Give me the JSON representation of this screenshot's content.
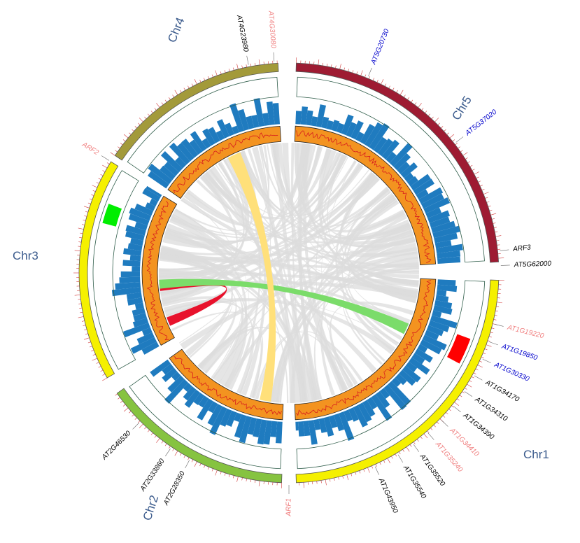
{
  "colors": {
    "ideogram_chr1": "#f5f000",
    "ideogram_chr2": "#86c340",
    "ideogram_chr3": "#f5f000",
    "ideogram_chr4": "#a39a3a",
    "ideogram_chr5": "#9e1b32",
    "tick": "#d23c3c",
    "histogram": "#1f7bbf",
    "heat_ring": "#f39320",
    "heat_line": "#d81e1e",
    "link_grey": "#dcdcdc",
    "link_red": "#e8122c",
    "link_green": "#7bdc6a",
    "link_yellow": "#ffe07a",
    "marker_red": "#ff0000",
    "marker_green": "#00ee00",
    "gene_black": "#000000",
    "gene_blue": "#0000cc",
    "gene_pink": "#f08080"
  },
  "chromosomes": [
    {
      "id": "chr1",
      "label": "Chr1"
    },
    {
      "id": "chr2",
      "label": "Chr2"
    },
    {
      "id": "chr3",
      "label": "Chr3"
    },
    {
      "id": "chr4",
      "label": "Chr4"
    },
    {
      "id": "chr5",
      "label": "Chr5"
    }
  ],
  "genes": [
    {
      "label": "AT1G19220",
      "color": "pink"
    },
    {
      "label": "AT1G19850",
      "color": "blue"
    },
    {
      "label": "AT1G30330",
      "color": "blue"
    },
    {
      "label": "AT1G34170",
      "color": "black"
    },
    {
      "label": "AT1G34310",
      "color": "black"
    },
    {
      "label": "AT1G34390",
      "color": "black"
    },
    {
      "label": "AT1G34410",
      "color": "pink"
    },
    {
      "label": "AT1G35240",
      "color": "pink"
    },
    {
      "label": "AT1G35520",
      "color": "black"
    },
    {
      "label": "AT1G35540",
      "color": "black"
    },
    {
      "label": "AT1G43950",
      "color": "black"
    },
    {
      "label": "ARF1",
      "color": "pink"
    },
    {
      "label": "AT2G28350",
      "color": "black"
    },
    {
      "label": "AT2G33860",
      "color": "black"
    },
    {
      "label": "AT2G46530",
      "color": "black"
    },
    {
      "label": "ARF2",
      "color": "pink"
    },
    {
      "label": "AT4G23980",
      "color": "black"
    },
    {
      "label": "AT4G30080",
      "color": "pink"
    },
    {
      "label": "AT5G20730",
      "color": "blue"
    },
    {
      "label": "AT5G37020",
      "color": "blue"
    },
    {
      "label": "ARF3",
      "color": "black"
    },
    {
      "label": "AT5G62000",
      "color": "black"
    }
  ]
}
